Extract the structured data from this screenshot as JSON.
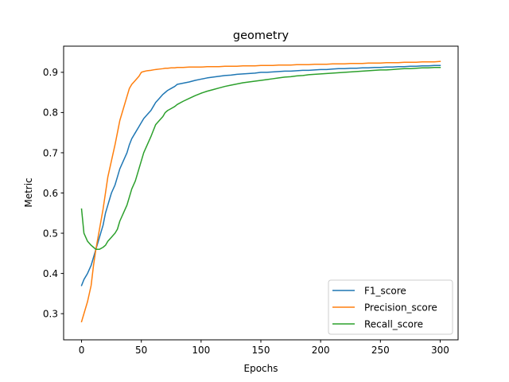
{
  "chart_data": {
    "type": "line",
    "title": "geometry",
    "xlabel": "Epochs",
    "ylabel": "Metric",
    "xlim": [
      -15,
      315
    ],
    "ylim": [
      0.235,
      0.965
    ],
    "xticks": [
      0,
      50,
      100,
      150,
      200,
      250,
      300
    ],
    "yticks": [
      0.3,
      0.4,
      0.5,
      0.6,
      0.7,
      0.8,
      0.9
    ],
    "grid": false,
    "legend_position": "lower right",
    "series": [
      {
        "name": "F1_score",
        "color": "#1f77b4",
        "x": [
          0,
          2,
          5,
          8,
          10,
          12,
          15,
          18,
          20,
          22,
          25,
          28,
          30,
          32,
          35,
          38,
          40,
          42,
          45,
          48,
          50,
          52,
          55,
          58,
          60,
          62,
          65,
          68,
          70,
          72,
          75,
          78,
          80,
          85,
          90,
          95,
          100,
          105,
          110,
          115,
          120,
          125,
          130,
          135,
          140,
          145,
          150,
          155,
          160,
          165,
          170,
          175,
          180,
          185,
          190,
          195,
          200,
          205,
          210,
          215,
          220,
          225,
          230,
          235,
          240,
          245,
          250,
          255,
          260,
          265,
          270,
          275,
          280,
          285,
          290,
          295,
          300
        ],
        "values": [
          0.37,
          0.385,
          0.4,
          0.42,
          0.44,
          0.46,
          0.49,
          0.52,
          0.55,
          0.57,
          0.6,
          0.62,
          0.64,
          0.66,
          0.68,
          0.7,
          0.72,
          0.735,
          0.75,
          0.765,
          0.775,
          0.785,
          0.795,
          0.805,
          0.815,
          0.825,
          0.835,
          0.845,
          0.85,
          0.855,
          0.86,
          0.865,
          0.87,
          0.873,
          0.876,
          0.88,
          0.883,
          0.886,
          0.888,
          0.89,
          0.892,
          0.893,
          0.895,
          0.896,
          0.897,
          0.898,
          0.9,
          0.9,
          0.901,
          0.902,
          0.903,
          0.903,
          0.904,
          0.905,
          0.905,
          0.906,
          0.907,
          0.907,
          0.908,
          0.909,
          0.909,
          0.91,
          0.91,
          0.911,
          0.911,
          0.912,
          0.912,
          0.913,
          0.913,
          0.914,
          0.914,
          0.915,
          0.915,
          0.916,
          0.916,
          0.917,
          0.917
        ]
      },
      {
        "name": "Precision_score",
        "color": "#ff7f0e",
        "x": [
          0,
          2,
          5,
          8,
          10,
          12,
          15,
          18,
          20,
          22,
          25,
          28,
          30,
          32,
          35,
          38,
          40,
          42,
          45,
          48,
          50,
          52,
          55,
          58,
          60,
          62,
          65,
          68,
          70,
          72,
          75,
          78,
          80,
          85,
          90,
          95,
          100,
          105,
          110,
          115,
          120,
          125,
          130,
          135,
          140,
          145,
          150,
          155,
          160,
          165,
          170,
          175,
          180,
          185,
          190,
          195,
          200,
          205,
          210,
          215,
          220,
          225,
          230,
          235,
          240,
          245,
          250,
          255,
          260,
          265,
          270,
          275,
          280,
          285,
          290,
          295,
          300
        ],
        "values": [
          0.28,
          0.3,
          0.33,
          0.37,
          0.42,
          0.46,
          0.51,
          0.56,
          0.6,
          0.64,
          0.68,
          0.72,
          0.75,
          0.78,
          0.81,
          0.84,
          0.86,
          0.87,
          0.88,
          0.89,
          0.9,
          0.902,
          0.904,
          0.905,
          0.906,
          0.907,
          0.908,
          0.909,
          0.91,
          0.91,
          0.911,
          0.911,
          0.912,
          0.912,
          0.913,
          0.913,
          0.913,
          0.914,
          0.914,
          0.914,
          0.915,
          0.915,
          0.915,
          0.916,
          0.916,
          0.916,
          0.917,
          0.917,
          0.917,
          0.918,
          0.918,
          0.918,
          0.919,
          0.919,
          0.919,
          0.92,
          0.92,
          0.92,
          0.921,
          0.921,
          0.921,
          0.922,
          0.922,
          0.922,
          0.923,
          0.923,
          0.923,
          0.924,
          0.924,
          0.924,
          0.925,
          0.925,
          0.925,
          0.926,
          0.926,
          0.926,
          0.927
        ]
      },
      {
        "name": "Recall_score",
        "color": "#2ca02c",
        "x": [
          0,
          2,
          5,
          8,
          10,
          12,
          15,
          18,
          20,
          22,
          25,
          28,
          30,
          32,
          35,
          38,
          40,
          42,
          45,
          48,
          50,
          52,
          55,
          58,
          60,
          62,
          65,
          68,
          70,
          72,
          75,
          78,
          80,
          85,
          90,
          95,
          100,
          105,
          110,
          115,
          120,
          125,
          130,
          135,
          140,
          145,
          150,
          155,
          160,
          165,
          170,
          175,
          180,
          185,
          190,
          195,
          200,
          205,
          210,
          215,
          220,
          225,
          230,
          235,
          240,
          245,
          250,
          255,
          260,
          265,
          270,
          275,
          280,
          285,
          290,
          295,
          300
        ],
        "values": [
          0.56,
          0.5,
          0.48,
          0.47,
          0.465,
          0.46,
          0.46,
          0.465,
          0.47,
          0.48,
          0.49,
          0.5,
          0.51,
          0.53,
          0.55,
          0.57,
          0.59,
          0.61,
          0.63,
          0.66,
          0.68,
          0.7,
          0.72,
          0.74,
          0.755,
          0.77,
          0.78,
          0.79,
          0.8,
          0.805,
          0.81,
          0.815,
          0.82,
          0.828,
          0.835,
          0.842,
          0.848,
          0.853,
          0.857,
          0.861,
          0.865,
          0.868,
          0.871,
          0.874,
          0.876,
          0.878,
          0.88,
          0.882,
          0.884,
          0.886,
          0.888,
          0.889,
          0.891,
          0.892,
          0.894,
          0.895,
          0.896,
          0.897,
          0.898,
          0.899,
          0.9,
          0.901,
          0.902,
          0.903,
          0.904,
          0.905,
          0.906,
          0.906,
          0.907,
          0.908,
          0.909,
          0.909,
          0.91,
          0.911,
          0.911,
          0.912,
          0.912
        ]
      }
    ]
  }
}
